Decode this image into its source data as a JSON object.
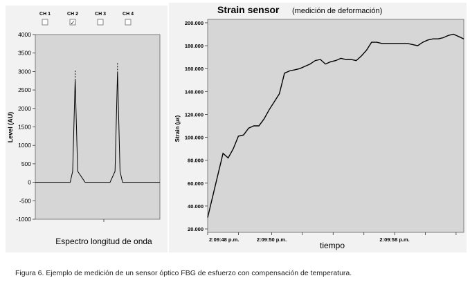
{
  "left_chart": {
    "channels": [
      {
        "label": "CH 1",
        "checked": false
      },
      {
        "label": "CH 2",
        "checked": true
      },
      {
        "label": "CH 3",
        "checked": false
      },
      {
        "label": "CH 4",
        "checked": false
      }
    ],
    "checkmark": "✓",
    "ylabel": "Level (AU)",
    "xlabel": "Espectro longitud de onda",
    "yticks": [
      "4000",
      "3500",
      "3000",
      "2500",
      "2000",
      "1500",
      "1000",
      "500",
      "0",
      "-500",
      "-1000"
    ]
  },
  "right_chart": {
    "title": "Strain sensor",
    "subtitle": "(medición de deformación)",
    "ylabel": "Strain (µε)",
    "xlabel": "tiempo",
    "yticks": [
      "200.000",
      "180.000",
      "160.000",
      "140.000",
      "120.000",
      "100.000",
      "80.000",
      "60.000",
      "40.000",
      "20.000"
    ],
    "xticks": [
      "2:09:48 p.m.",
      "2:09:50 p.m.",
      "2:09:58 p.m."
    ]
  },
  "caption": "Figura 6. Ejemplo de medición de un sensor óptico FBG de esfuerzo con compensación de temperatura.",
  "chart_data": [
    {
      "type": "line",
      "xlabel": "Espectro longitud de onda",
      "ylabel": "Level (AU)",
      "ylim": [
        -1000,
        4000
      ],
      "grid": false,
      "series": [
        {
          "name": "CH 2",
          "x": [
            0,
            5,
            10,
            14,
            15,
            16,
            17,
            20,
            25,
            30,
            32,
            33,
            34,
            35,
            38,
            45,
            50
          ],
          "values": [
            0,
            0,
            0,
            0,
            300,
            2800,
            300,
            0,
            0,
            0,
            300,
            3000,
            300,
            0,
            0,
            0,
            0
          ]
        }
      ]
    },
    {
      "type": "line",
      "title": "Strain sensor",
      "subtitle": "(medición de deformación)",
      "xlabel": "tiempo",
      "ylabel": "Strain (µε)",
      "ylim": [
        20000,
        200000
      ],
      "xticks": [
        "2:09:48 p.m.",
        "2:09:50 p.m.",
        "2:09:58 p.m."
      ],
      "grid": false,
      "series": [
        {
          "name": "",
          "x": [
            0,
            3,
            6,
            8,
            10,
            12,
            14,
            16,
            18,
            20,
            22,
            24,
            26,
            28,
            30,
            32,
            34,
            36,
            38,
            40,
            42,
            44,
            46,
            48,
            50,
            52,
            54,
            56,
            58,
            60,
            62,
            64,
            66,
            68,
            70,
            72,
            74,
            76,
            78,
            80,
            82,
            84,
            86,
            88,
            90,
            92,
            94,
            96,
            98,
            100
          ],
          "values": [
            30000,
            58000,
            86000,
            82000,
            90000,
            101000,
            102000,
            108000,
            110000,
            110000,
            116000,
            124000,
            131000,
            138000,
            156000,
            158000,
            159000,
            160000,
            162000,
            164000,
            167000,
            168000,
            164000,
            166000,
            167000,
            169000,
            168000,
            168000,
            167000,
            171000,
            176000,
            183000,
            183000,
            182000,
            182000,
            182000,
            182000,
            182000,
            182000,
            181000,
            180000,
            183000,
            185000,
            186000,
            186000,
            187000,
            189000,
            190000,
            188000,
            186000
          ]
        }
      ]
    }
  ]
}
